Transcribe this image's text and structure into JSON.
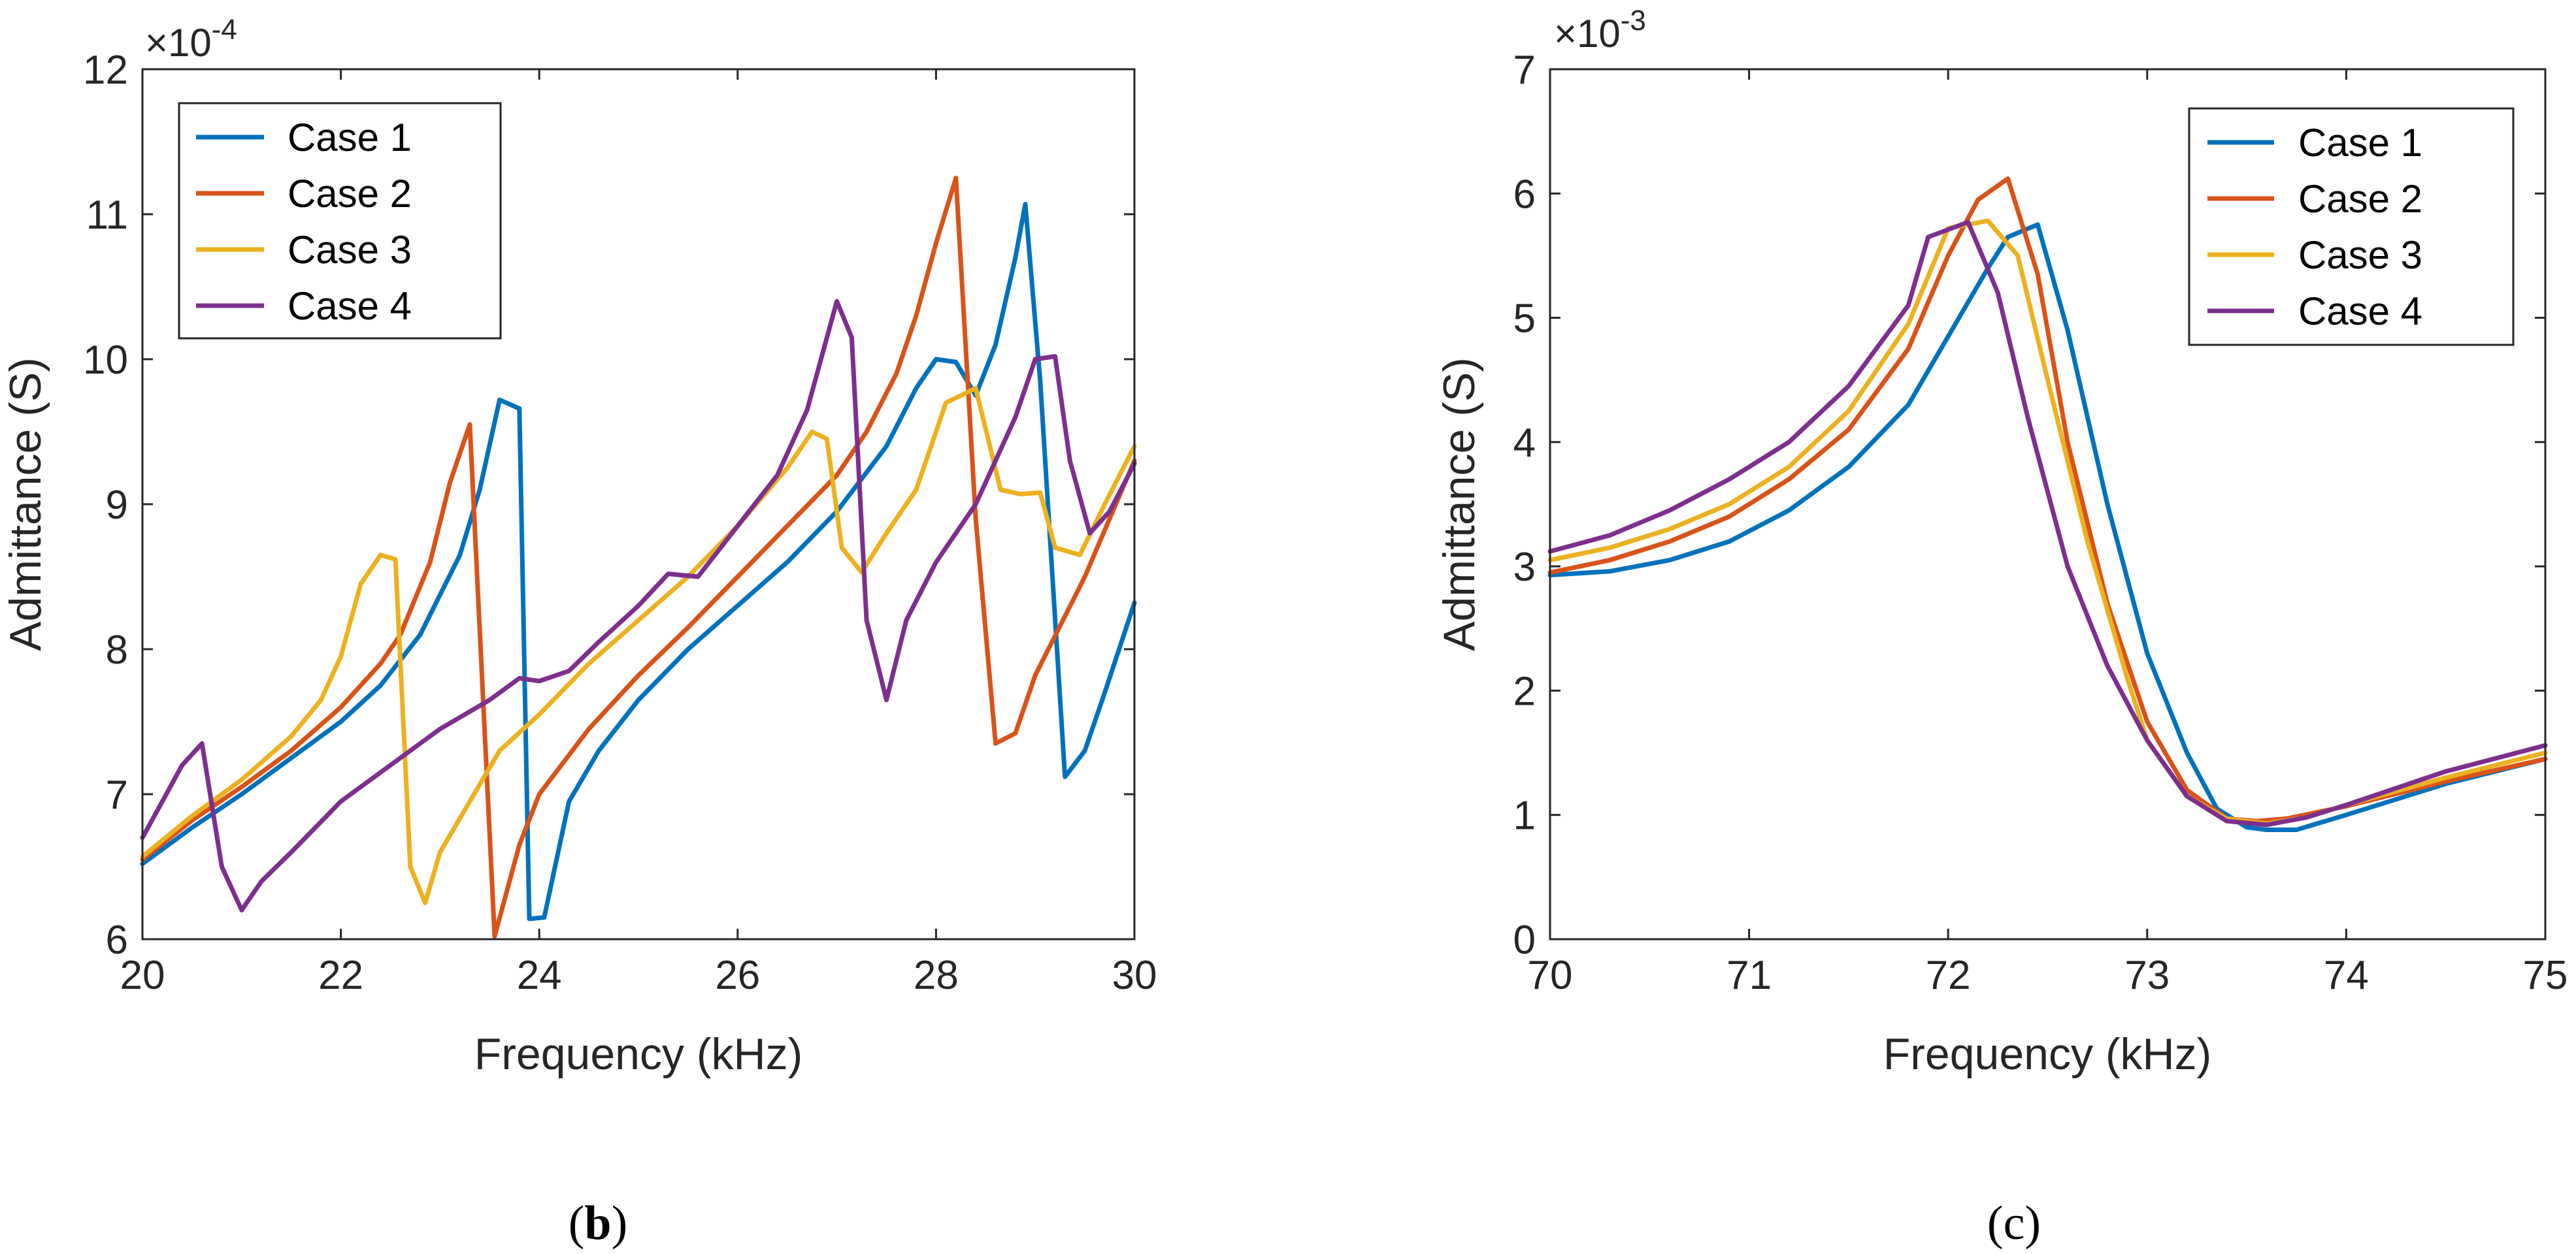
{
  "colors": {
    "case1": "#0072BD",
    "case2": "#D95319",
    "case3": "#EDB120",
    "case4": "#7E2F8E",
    "axis": "#262626"
  },
  "chart_data": [
    {
      "type": "line",
      "panel": "b",
      "sublabel_open": "(",
      "sublabel_letter": "b",
      "sublabel_close": ")",
      "xlabel": "Frequency (kHz)",
      "ylabel": "Admittance (S)",
      "scale_base": "×10",
      "scale_exp": "-4",
      "xlim": [
        20,
        30
      ],
      "ylim": [
        6,
        12
      ],
      "xticks": [
        20,
        22,
        24,
        26,
        28,
        30
      ],
      "yticks": [
        6,
        7,
        8,
        9,
        10,
        11,
        12
      ],
      "legend_position": "top-left",
      "series": [
        {
          "name": "Case 1",
          "color_key": "case1",
          "x": [
            20,
            20.5,
            21,
            21.5,
            22,
            22.4,
            22.8,
            23.2,
            23.4,
            23.6,
            23.8,
            23.9,
            24.05,
            24.3,
            24.6,
            25,
            25.5,
            26,
            26.5,
            27,
            27.5,
            27.8,
            28,
            28.2,
            28.4,
            28.6,
            28.8,
            28.9,
            29.05,
            29.3,
            29.5,
            29.7,
            30
          ],
          "y": [
            6.52,
            6.77,
            7.0,
            7.25,
            7.5,
            7.75,
            8.1,
            8.65,
            9.1,
            9.72,
            9.66,
            6.14,
            6.15,
            6.95,
            7.3,
            7.65,
            8.0,
            8.3,
            8.6,
            8.95,
            9.4,
            9.8,
            10.0,
            9.98,
            9.75,
            10.1,
            10.7,
            11.07,
            9.85,
            7.12,
            7.3,
            7.7,
            8.32
          ]
        },
        {
          "name": "Case 2",
          "color_key": "case2",
          "x": [
            20,
            20.5,
            21,
            21.5,
            22,
            22.4,
            22.6,
            22.9,
            23.1,
            23.3,
            23.55,
            23.8,
            24,
            24.5,
            25,
            25.5,
            26,
            26.5,
            27,
            27.3,
            27.6,
            27.8,
            28,
            28.2,
            28.4,
            28.6,
            28.8,
            29,
            29.5,
            30
          ],
          "y": [
            6.55,
            6.82,
            7.05,
            7.3,
            7.6,
            7.9,
            8.1,
            8.6,
            9.15,
            9.55,
            6.02,
            6.65,
            7.0,
            7.45,
            7.82,
            8.15,
            8.5,
            8.85,
            9.2,
            9.5,
            9.9,
            10.3,
            10.8,
            11.25,
            8.9,
            7.35,
            7.42,
            7.82,
            8.5,
            9.3
          ]
        },
        {
          "name": "Case 3",
          "color_key": "case3",
          "x": [
            20,
            20.5,
            21,
            21.5,
            21.8,
            22,
            22.2,
            22.4,
            22.55,
            22.7,
            22.85,
            23,
            23.3,
            23.6,
            24,
            24.5,
            25,
            25.5,
            26,
            26.5,
            26.75,
            26.9,
            27.05,
            27.25,
            27.5,
            27.8,
            28.1,
            28.4,
            28.65,
            28.85,
            29.05,
            29.2,
            29.45,
            29.7,
            30
          ],
          "y": [
            6.57,
            6.85,
            7.1,
            7.4,
            7.65,
            7.95,
            8.45,
            8.65,
            8.62,
            6.5,
            6.25,
            6.6,
            6.95,
            7.3,
            7.55,
            7.9,
            8.2,
            8.5,
            8.85,
            9.25,
            9.5,
            9.45,
            8.7,
            8.53,
            8.8,
            9.1,
            9.7,
            9.8,
            9.1,
            9.07,
            9.08,
            8.7,
            8.65,
            9.0,
            9.4
          ]
        },
        {
          "name": "Case 4",
          "color_key": "case4",
          "x": [
            20,
            20.2,
            20.4,
            20.6,
            20.8,
            21,
            21.2,
            21.5,
            22,
            22.5,
            23,
            23.5,
            23.8,
            24,
            24.3,
            24.6,
            25,
            25.3,
            25.6,
            26,
            26.4,
            26.7,
            27,
            27.15,
            27.3,
            27.5,
            27.7,
            28,
            28.4,
            28.8,
            29,
            29.2,
            29.35,
            29.55,
            29.75,
            30
          ],
          "y": [
            6.7,
            6.95,
            7.2,
            7.35,
            6.5,
            6.2,
            6.4,
            6.6,
            6.95,
            7.2,
            7.45,
            7.65,
            7.8,
            7.78,
            7.85,
            8.05,
            8.3,
            8.52,
            8.5,
            8.85,
            9.2,
            9.65,
            10.4,
            10.15,
            8.2,
            7.65,
            8.2,
            8.6,
            9.0,
            9.6,
            10.0,
            10.02,
            9.3,
            8.8,
            8.95,
            9.28
          ]
        }
      ]
    },
    {
      "type": "line",
      "panel": "c",
      "sublabel_open": "(",
      "sublabel_letter": "c",
      "sublabel_close": ")",
      "xlabel": "Frequency (kHz)",
      "ylabel": "Admittance (S)",
      "scale_base": "×10",
      "scale_exp": "-3",
      "xlim": [
        70,
        75
      ],
      "ylim": [
        0,
        7
      ],
      "xticks": [
        70,
        71,
        72,
        73,
        74,
        75
      ],
      "yticks": [
        0,
        1,
        2,
        3,
        4,
        5,
        6,
        7
      ],
      "legend_position": "top-right",
      "series": [
        {
          "name": "Case 1",
          "color_key": "case1",
          "x": [
            70,
            70.3,
            70.6,
            70.9,
            71.2,
            71.5,
            71.8,
            72,
            72.2,
            72.3,
            72.45,
            72.6,
            72.8,
            73,
            73.2,
            73.35,
            73.5,
            73.6,
            73.75,
            74,
            74.5,
            75
          ],
          "y": [
            2.93,
            2.96,
            3.05,
            3.2,
            3.45,
            3.8,
            4.3,
            4.85,
            5.4,
            5.65,
            5.75,
            4.9,
            3.5,
            2.3,
            1.5,
            1.05,
            0.9,
            0.88,
            0.88,
            1.0,
            1.25,
            1.45
          ]
        },
        {
          "name": "Case 2",
          "color_key": "case2",
          "x": [
            70,
            70.3,
            70.6,
            70.9,
            71.2,
            71.5,
            71.8,
            72,
            72.15,
            72.3,
            72.45,
            72.6,
            72.8,
            73,
            73.2,
            73.4,
            73.55,
            73.7,
            74,
            74.5,
            75
          ],
          "y": [
            2.95,
            3.05,
            3.2,
            3.4,
            3.7,
            4.1,
            4.75,
            5.5,
            5.95,
            6.12,
            5.35,
            4.0,
            2.7,
            1.75,
            1.2,
            0.97,
            0.95,
            0.97,
            1.07,
            1.27,
            1.45
          ]
        },
        {
          "name": "Case 3",
          "color_key": "case3",
          "x": [
            70,
            70.3,
            70.6,
            70.9,
            71.2,
            71.5,
            71.8,
            72,
            72.2,
            72.35,
            72.5,
            72.7,
            72.9,
            73,
            73.2,
            73.4,
            73.6,
            73.8,
            74,
            74.5,
            75
          ],
          "y": [
            3.05,
            3.15,
            3.3,
            3.5,
            3.8,
            4.25,
            4.95,
            5.72,
            5.78,
            5.5,
            4.5,
            3.2,
            2.1,
            1.6,
            1.15,
            0.97,
            0.93,
            0.98,
            1.08,
            1.3,
            1.5
          ]
        },
        {
          "name": "Case 4",
          "color_key": "case4",
          "x": [
            70,
            70.3,
            70.6,
            70.9,
            71.2,
            71.5,
            71.8,
            71.9,
            72.1,
            72.25,
            72.4,
            72.6,
            72.8,
            73,
            73.2,
            73.4,
            73.6,
            73.8,
            74,
            74.5,
            75
          ],
          "y": [
            3.12,
            3.25,
            3.45,
            3.7,
            4.0,
            4.45,
            5.1,
            5.65,
            5.77,
            5.2,
            4.2,
            3.0,
            2.2,
            1.6,
            1.15,
            0.95,
            0.92,
            0.98,
            1.08,
            1.35,
            1.56
          ]
        }
      ]
    }
  ]
}
